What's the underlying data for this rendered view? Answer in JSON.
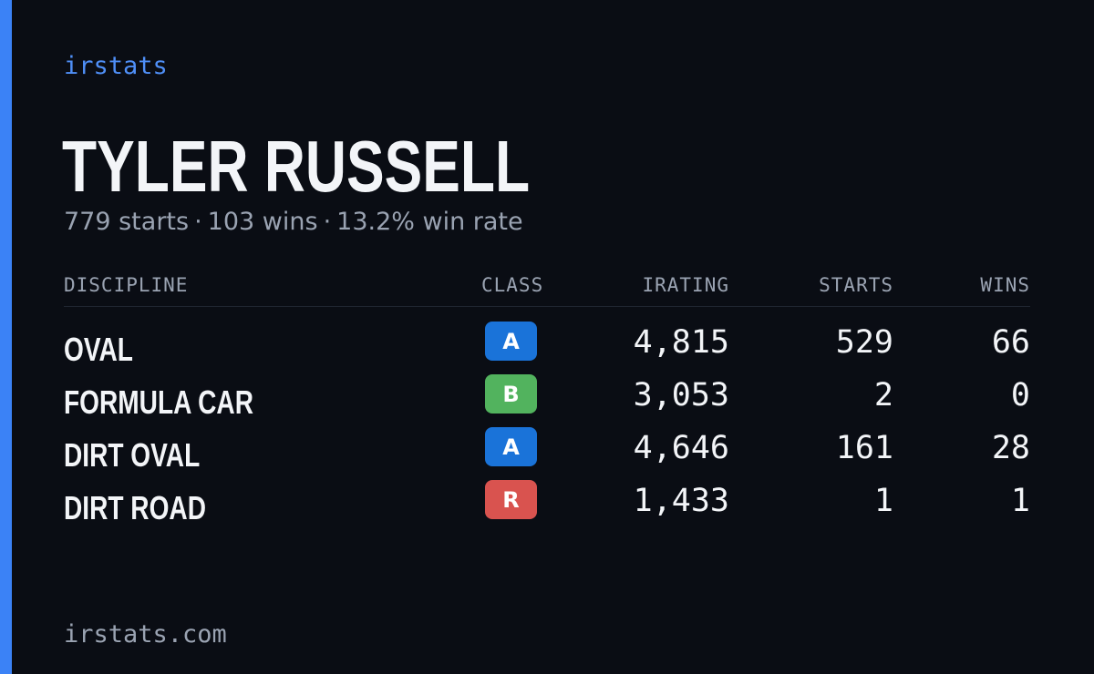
{
  "colors": {
    "background": "#0a0d14",
    "accent": "#3b82f6",
    "brand": "#4f8ff7",
    "muted": "#9aa3b2",
    "text": "#f3f5f8"
  },
  "brand": "irstats",
  "driver": {
    "name": "TYLER RUSSELL",
    "starts_text": "779 starts",
    "wins_text": "103 wins",
    "winrate_text": "13.2% win rate",
    "separator": "·"
  },
  "table": {
    "headers": {
      "discipline": "DISCIPLINE",
      "class": "CLASS",
      "irating": "IRATING",
      "starts": "STARTS",
      "wins": "WINS"
    },
    "rows": [
      {
        "discipline": "OVAL",
        "class": "A",
        "class_color": "#1a73d9",
        "irating": "4,815",
        "starts": "529",
        "wins": "66"
      },
      {
        "discipline": "FORMULA CAR",
        "class": "B",
        "class_color": "#52b35e",
        "irating": "3,053",
        "starts": "2",
        "wins": "0"
      },
      {
        "discipline": "DIRT OVAL",
        "class": "A",
        "class_color": "#1a73d9",
        "irating": "4,646",
        "starts": "161",
        "wins": "28"
      },
      {
        "discipline": "DIRT ROAD",
        "class": "R",
        "class_color": "#d9534f",
        "irating": "1,433",
        "starts": "1",
        "wins": "1"
      }
    ]
  },
  "footer": {
    "url": "irstats.com"
  }
}
